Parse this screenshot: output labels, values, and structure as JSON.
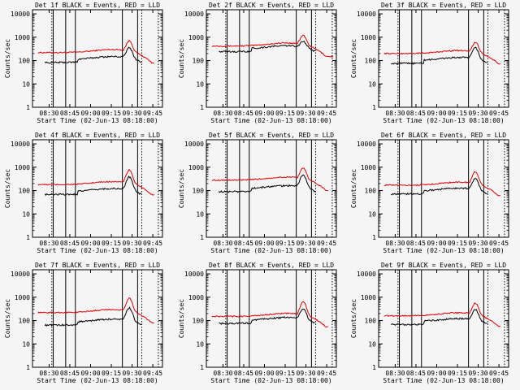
{
  "chart_data": {
    "type": "line",
    "figure": {
      "xlabel": "Start Time (02-Jun-13 08:18:00)",
      "ylabel": "Counts/sec",
      "x_ticks": [
        "08:30",
        "08:45",
        "09:00",
        "09:15",
        "09:30",
        "09:45"
      ],
      "y_ticks": [
        "1",
        "10",
        "100",
        "1000",
        "10000"
      ],
      "y_scale": "log",
      "ylim": [
        1,
        15000
      ],
      "xlim_minutes_from_start": [
        0,
        94
      ]
    },
    "colors": {
      "events": "#000000",
      "lld": "#e00000",
      "background": "#f5f5f5"
    },
    "vertical_markers": {
      "solid": [
        "08:33",
        "08:42",
        "08:49",
        "09:23",
        "09:34"
      ],
      "dotted": [
        "08:32",
        "09:37",
        "09:49"
      ]
    },
    "panels": [
      {
        "title": "Det 1f BLACK = Events, RED = LLD",
        "events_base": 110,
        "lld_base": 220,
        "events_peak": 330,
        "lld_peak": 650
      },
      {
        "title": "Det 2f BLACK = Events, RED = LLD",
        "events_base": 320,
        "lld_base": 420,
        "events_peak": 600,
        "lld_peak": 1100
      },
      {
        "title": "Det 3f BLACK = Events, RED = LLD",
        "events_base": 100,
        "lld_base": 200,
        "events_peak": 330,
        "lld_peak": 550
      },
      {
        "title": "Det 4f BLACK = Events, RED = LLD",
        "events_base": 90,
        "lld_base": 180,
        "events_peak": 360,
        "lld_peak": 720
      },
      {
        "title": "Det 5f BLACK = Events, RED = LLD",
        "events_base": 120,
        "lld_base": 280,
        "events_peak": 450,
        "lld_peak": 850
      },
      {
        "title": "Det 6f BLACK = Events, RED = LLD",
        "events_base": 95,
        "lld_base": 170,
        "events_peak": 300,
        "lld_peak": 600
      },
      {
        "title": "Det 7f BLACK = Events, RED = LLD",
        "events_base": 85,
        "lld_base": 220,
        "events_peak": 330,
        "lld_peak": 850
      },
      {
        "title": "Det 8f BLACK = Events, RED = LLD",
        "events_base": 100,
        "lld_base": 150,
        "events_peak": 300,
        "lld_peak": 600
      },
      {
        "title": "Det 9f BLACK = Events, RED = LLD",
        "events_base": 90,
        "lld_base": 160,
        "events_peak": 270,
        "lld_peak": 520
      }
    ]
  }
}
